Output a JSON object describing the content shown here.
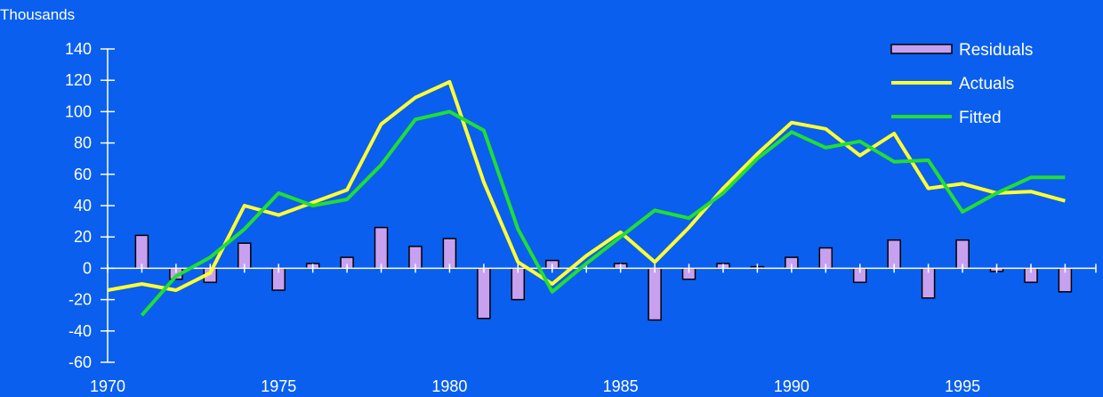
{
  "chart_data": {
    "type": "bar+line",
    "unit_label": "Thousands",
    "x": [
      1970,
      1971,
      1972,
      1973,
      1974,
      1975,
      1976,
      1977,
      1978,
      1979,
      1980,
      1981,
      1982,
      1983,
      1984,
      1985,
      1986,
      1987,
      1988,
      1989,
      1990,
      1991,
      1992,
      1993,
      1994,
      1995,
      1996,
      1997,
      1998
    ],
    "xlim": [
      1970,
      1998.9
    ],
    "ylim": [
      -60,
      140
    ],
    "ytick_values": [
      -60,
      -40,
      -20,
      0,
      20,
      40,
      60,
      80,
      100,
      120,
      140
    ],
    "ytick_labels": [
      "-60",
      "-40",
      "-20",
      "0",
      "20",
      "40",
      "60",
      "80",
      "100",
      "120",
      "140"
    ],
    "xtick_values": [
      1970,
      1975,
      1980,
      1985,
      1990,
      1995
    ],
    "xtick_labels": [
      "1970",
      "1975",
      "1980",
      "1985",
      "1990",
      "1995"
    ],
    "grid": false,
    "legend_position": "top-right",
    "series": [
      {
        "name": "Residuals",
        "kind": "bar",
        "color": "#c8a0f0",
        "values": [
          null,
          21,
          -7,
          -9,
          16,
          -14,
          3,
          7,
          26,
          14,
          19,
          -32,
          -20,
          5,
          null,
          3,
          -33,
          -7,
          3,
          1,
          7,
          13,
          -9,
          18,
          -19,
          18,
          -2,
          -9,
          -15
        ]
      },
      {
        "name": "Actuals",
        "kind": "line",
        "color": "#ffff33",
        "values": [
          -14,
          -10,
          -14,
          -3,
          40,
          34,
          42,
          50,
          92,
          109,
          119,
          55,
          4,
          -10,
          8,
          23,
          4,
          26,
          51,
          73,
          93,
          89,
          72,
          86,
          51,
          54,
          48,
          49,
          43
        ]
      },
      {
        "name": "Fitted",
        "kind": "line",
        "color": "#22dd33",
        "values": [
          null,
          -30,
          -5,
          7,
          25,
          48,
          40,
          44,
          66,
          95,
          100,
          88,
          25,
          -15,
          3,
          20,
          37,
          32,
          48,
          70,
          87,
          77,
          81,
          68,
          69,
          36,
          48,
          58,
          58
        ]
      }
    ]
  }
}
